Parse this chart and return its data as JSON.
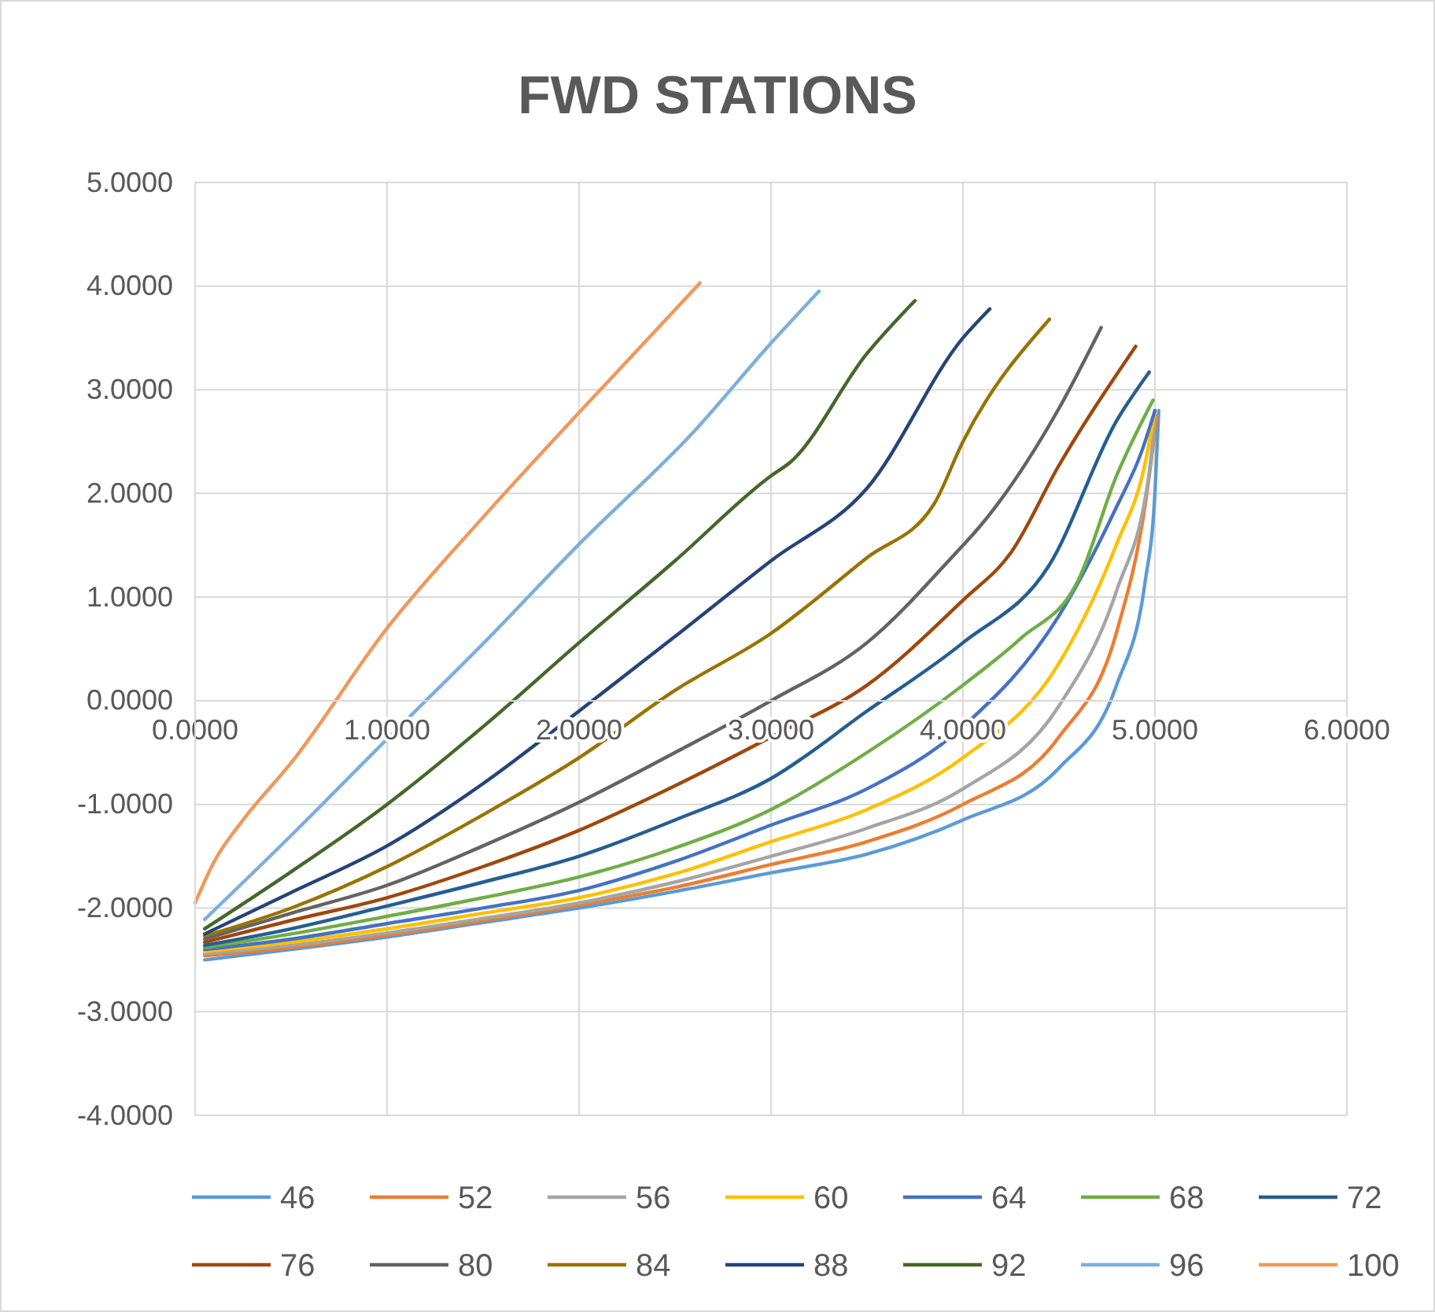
{
  "chart_data": {
    "type": "line",
    "title": "FWD STATIONS",
    "xlim": [
      0,
      6
    ],
    "xticks": [
      {
        "value": 0,
        "label": "0.0000"
      },
      {
        "value": 1,
        "label": "1.0000"
      },
      {
        "value": 2,
        "label": "2.0000"
      },
      {
        "value": 3,
        "label": "3.0000"
      },
      {
        "value": 4,
        "label": "4.0000"
      },
      {
        "value": 5,
        "label": "5.0000"
      },
      {
        "value": 6,
        "label": "6.0000"
      }
    ],
    "ylim": [
      -4,
      5
    ],
    "yticks": [
      {
        "value": -4,
        "label": "-4.0000"
      },
      {
        "value": -3,
        "label": "-3.0000"
      },
      {
        "value": -2,
        "label": "-2.0000"
      },
      {
        "value": -1,
        "label": "-1.0000"
      },
      {
        "value": 0,
        "label": "0.0000"
      },
      {
        "value": 1,
        "label": "1.0000"
      },
      {
        "value": 2,
        "label": "2.0000"
      },
      {
        "value": 3,
        "label": "3.0000"
      },
      {
        "value": 4,
        "label": "4.0000"
      },
      {
        "value": 5,
        "label": "5.0000"
      }
    ],
    "grid": true,
    "legend": "bottom",
    "marker": "none",
    "line_style": "solid",
    "series": [
      {
        "name": "46",
        "color": "#5b9bd5",
        "x": [
          0.05,
          0.5,
          1,
          1.5,
          2,
          2.5,
          3,
          3.5,
          4,
          4.5,
          4.8,
          4.95,
          5.0,
          5.02
        ],
        "values": [
          -2.5,
          -2.4,
          -2.28,
          -2.14,
          -2.0,
          -1.84,
          -1.66,
          -1.48,
          -1.15,
          -0.65,
          0.15,
          1.16,
          2.0,
          2.8
        ]
      },
      {
        "name": "52",
        "color": "#ed7d31",
        "x": [
          0.05,
          0.5,
          1,
          1.5,
          2,
          2.5,
          3,
          3.5,
          4,
          4.5,
          4.8,
          4.95,
          5.01
        ],
        "values": [
          -2.46,
          -2.38,
          -2.26,
          -2.12,
          -1.97,
          -1.8,
          -1.58,
          -1.36,
          -1.0,
          -0.35,
          0.66,
          1.9,
          2.75
        ]
      },
      {
        "name": "56",
        "color": "#a5a5a5",
        "x": [
          0.05,
          0.5,
          1,
          1.5,
          2,
          2.5,
          3,
          3.5,
          4,
          4.5,
          4.8,
          4.97,
          5.0
        ],
        "values": [
          -2.44,
          -2.36,
          -2.24,
          -2.1,
          -1.95,
          -1.75,
          -1.5,
          -1.23,
          -0.85,
          -0.05,
          1.06,
          2.2,
          2.75
        ]
      },
      {
        "name": "60",
        "color": "#ffc000",
        "x": [
          0.05,
          0.5,
          1,
          1.5,
          2,
          2.5,
          3,
          3.5,
          4,
          4.5,
          4.8,
          4.95,
          5.0
        ],
        "values": [
          -2.42,
          -2.33,
          -2.2,
          -2.05,
          -1.9,
          -1.67,
          -1.36,
          -1.05,
          -0.55,
          0.36,
          1.51,
          2.3,
          2.8
        ]
      },
      {
        "name": "64",
        "color": "#4472c4",
        "x": [
          0.05,
          0.5,
          1,
          1.5,
          2,
          2.5,
          3,
          3.5,
          4,
          4.5,
          4.8,
          4.93,
          5.0
        ],
        "values": [
          -2.4,
          -2.3,
          -2.15,
          -2.0,
          -1.83,
          -1.55,
          -1.2,
          -0.85,
          -0.25,
          0.82,
          1.87,
          2.4,
          2.8
        ]
      },
      {
        "name": "68",
        "color": "#70ad47",
        "x": [
          0.05,
          0.5,
          1,
          1.5,
          2,
          2.5,
          3,
          3.5,
          4,
          4.3,
          4.6,
          4.8,
          4.99
        ],
        "values": [
          -2.38,
          -2.25,
          -2.08,
          -1.9,
          -1.7,
          -1.42,
          -1.05,
          -0.5,
          0.15,
          0.6,
          1.16,
          2.17,
          2.9
        ]
      },
      {
        "name": "72",
        "color": "#255e91",
        "x": [
          0.05,
          0.5,
          1,
          1.5,
          2,
          2.5,
          3,
          3.5,
          4,
          4.45,
          4.8,
          4.97
        ],
        "values": [
          -2.36,
          -2.2,
          -1.98,
          -1.75,
          -1.5,
          -1.15,
          -0.75,
          -0.1,
          0.56,
          1.31,
          2.7,
          3.17
        ]
      },
      {
        "name": "76",
        "color": "#9e480e",
        "x": [
          0.05,
          0.5,
          1,
          1.5,
          2,
          2.5,
          3,
          3.5,
          4,
          4.25,
          4.5,
          4.9
        ],
        "values": [
          -2.33,
          -2.12,
          -1.9,
          -1.6,
          -1.25,
          -0.82,
          -0.35,
          0.15,
          0.97,
          1.43,
          2.27,
          3.42
        ]
      },
      {
        "name": "80",
        "color": "#636363",
        "x": [
          0.05,
          0.5,
          1,
          1.5,
          2,
          2.5,
          3,
          3.5,
          4,
          4.05,
          4.5,
          4.72
        ],
        "values": [
          -2.3,
          -2.05,
          -1.78,
          -1.4,
          -0.98,
          -0.5,
          0.0,
          0.56,
          1.5,
          1.6,
          2.82,
          3.6
        ]
      },
      {
        "name": "84",
        "color": "#997300",
        "x": [
          0.05,
          0.5,
          1,
          1.5,
          2,
          2.5,
          3,
          3.5,
          3.85,
          4,
          4.45
        ],
        "values": [
          -2.27,
          -2.0,
          -1.6,
          -1.1,
          -0.55,
          0.1,
          0.65,
          1.38,
          1.9,
          2.5,
          3.68
        ]
      },
      {
        "name": "88",
        "color": "#264478",
        "x": [
          0.05,
          0.5,
          1,
          1.5,
          2,
          2.5,
          3,
          3.5,
          4,
          4.14
        ],
        "values": [
          -2.25,
          -1.85,
          -1.4,
          -0.8,
          -0.1,
          0.62,
          1.35,
          2.05,
          3.5,
          3.78
        ]
      },
      {
        "name": "92",
        "color": "#43682b",
        "x": [
          0.05,
          0.5,
          1,
          1.5,
          2,
          2.5,
          3,
          3.1,
          3.5,
          3.75
        ],
        "values": [
          -2.2,
          -1.65,
          -1.0,
          -0.25,
          0.56,
          1.35,
          2.17,
          2.3,
          3.35,
          3.86
        ]
      },
      {
        "name": "96",
        "color": "#7cafdd",
        "x": [
          0.05,
          0.5,
          1,
          1.5,
          2,
          2.6,
          3,
          3.25
        ],
        "values": [
          -2.11,
          -1.3,
          -0.37,
          0.55,
          1.51,
          2.6,
          3.45,
          3.95
        ]
      },
      {
        "name": "100",
        "color": "#f1975a",
        "x": [
          0,
          0.1,
          0.25,
          0.5,
          1,
          1.5,
          2,
          2.63
        ],
        "values": [
          -1.95,
          -1.55,
          -1.15,
          -0.6,
          0.7,
          1.77,
          2.78,
          4.03
        ]
      }
    ]
  }
}
